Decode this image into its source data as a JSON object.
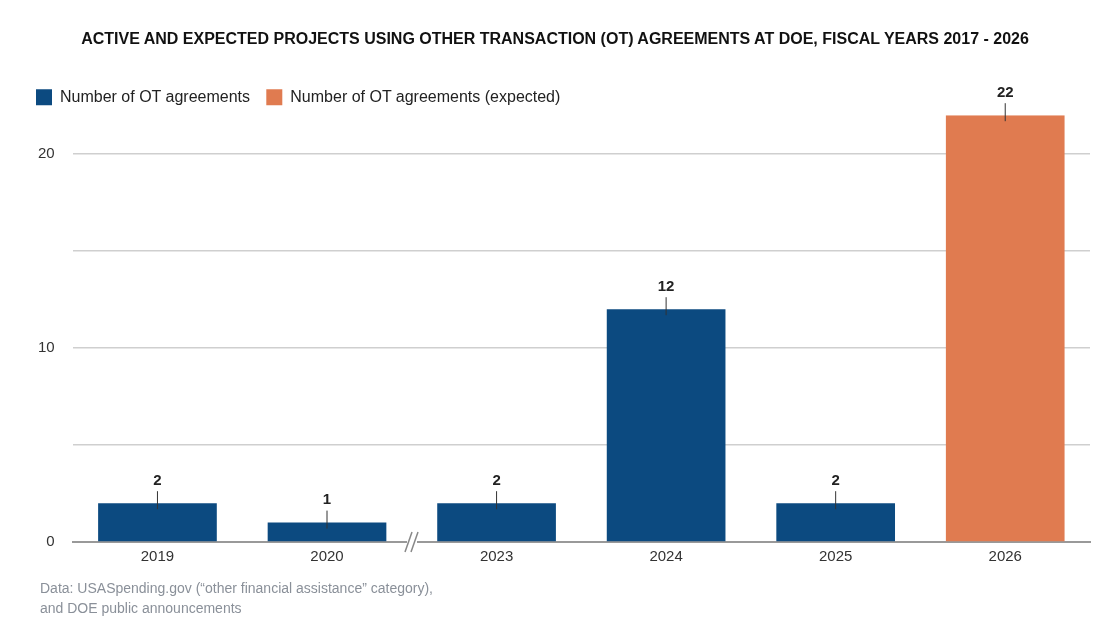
{
  "chart_data": {
    "type": "bar",
    "title": "ACTIVE AND EXPECTED PROJECTS USING OTHER TRANSACTION (OT) AGREEMENTS AT DOE, FISCAL YEARS 2017 - 2026",
    "categories": [
      "2019",
      "2020",
      "2023",
      "2024",
      "2025",
      "2026"
    ],
    "series": [
      {
        "name": "Number of OT agreements",
        "color": "#0c4a80",
        "values": [
          2,
          1,
          2,
          12,
          2,
          null
        ]
      },
      {
        "name": "Number of OT agreements (expected)",
        "color": "#e07b50",
        "values": [
          null,
          null,
          null,
          null,
          null,
          22
        ]
      }
    ],
    "ylim": [
      0,
      22
    ],
    "yticks": [
      0,
      {
        "value": 5,
        "label": null
      },
      10,
      {
        "value": 15,
        "label": null
      },
      20
    ],
    "grid": "y",
    "legend": "top left",
    "data_labels": true,
    "annotations": [
      "Data:  USASpending.gov (“other financial assistance” category), and DOE public announcements"
    ]
  }
}
